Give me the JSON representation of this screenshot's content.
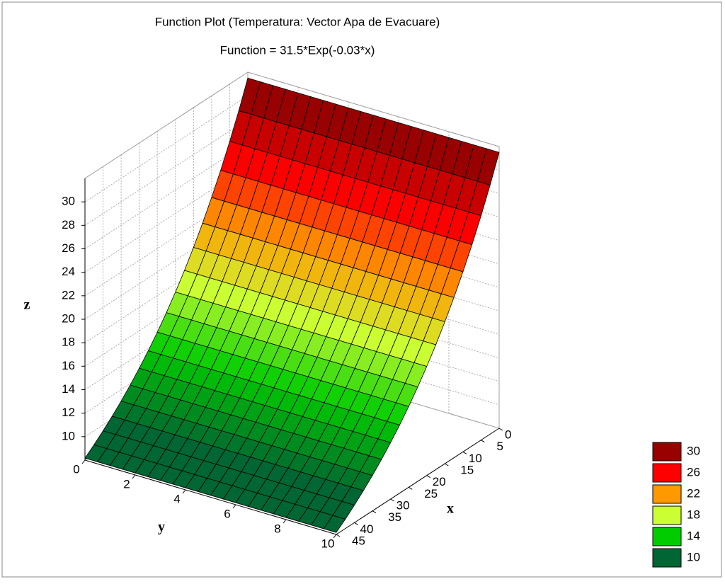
{
  "chart_data": {
    "type": "surface",
    "title": "Function Plot (Temperatura: Vector Apa de Evacuare)",
    "subtitle": "Function = 31.5*Exp(-0.03*x)",
    "x_label": "x",
    "y_label": "y",
    "z_label": "z",
    "xlim": [
      0,
      45
    ],
    "ylim": [
      0,
      10
    ],
    "zlim": [
      8,
      32
    ],
    "xticks": [
      0,
      5,
      10,
      15,
      20,
      25,
      30,
      35,
      40,
      45
    ],
    "yticks": [
      0,
      2,
      4,
      6,
      8,
      10
    ],
    "zticks": [
      10,
      12,
      14,
      16,
      18,
      20,
      22,
      24,
      26,
      28,
      30
    ],
    "x": [
      0,
      2.5,
      5,
      7.5,
      10,
      12.5,
      15,
      17.5,
      20,
      22.5,
      25,
      27.5,
      30,
      32.5,
      35,
      37.5,
      40,
      42.5,
      45
    ],
    "z": [
      31.5,
      29.22,
      27.11,
      25.15,
      23.34,
      21.65,
      20.09,
      18.63,
      17.29,
      16.04,
      14.88,
      13.8,
      12.81,
      11.88,
      11.02,
      10.23,
      9.49,
      8.8,
      8.17
    ],
    "grid": true,
    "legend": "bottom-right",
    "contours": [
      {
        "value": 30,
        "color": "#990000"
      },
      {
        "value": 26,
        "color": "#ff0000"
      },
      {
        "value": 22,
        "color": "#ff9900"
      },
      {
        "value": 18,
        "color": "#ccff33"
      },
      {
        "value": 14,
        "color": "#00cc00"
      },
      {
        "value": 10,
        "color": "#006633"
      }
    ]
  }
}
